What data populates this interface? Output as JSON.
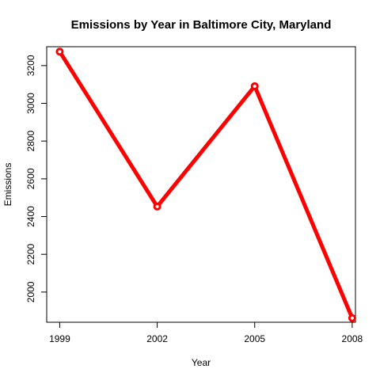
{
  "chart_data": {
    "type": "line",
    "title": "Emissions by Year in Baltimore City, Maryland",
    "xlabel": "Year",
    "ylabel": "Emissions",
    "x": [
      1999,
      2002,
      2005,
      2008
    ],
    "y_ticks": [
      2000,
      2200,
      2400,
      2600,
      2800,
      3000,
      3200
    ],
    "xlim": [
      1998.6,
      2008.1
    ],
    "ylim": [
      1840,
      3300
    ],
    "grid": false,
    "legend": "none",
    "series": [
      {
        "values": [
          3274,
          2453,
          3091,
          1862
        ],
        "color": "#ff0000",
        "marker": "circle"
      }
    ]
  }
}
